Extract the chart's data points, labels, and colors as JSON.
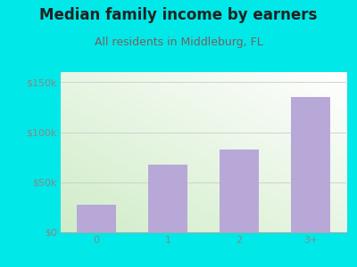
{
  "title": "Median family income by earners",
  "subtitle": "All residents in Middleburg, FL",
  "categories": [
    "0",
    "1",
    "2",
    "3+"
  ],
  "values": [
    28000,
    68000,
    83000,
    135000
  ],
  "bar_color": "#b8a8d8",
  "outer_bg": "#00e8e8",
  "plot_bg_topleft": "#d0ecc8",
  "plot_bg_bottomright": "#f5fff5",
  "title_color": "#222222",
  "subtitle_color": "#7a6060",
  "tick_label_color": "#888888",
  "ytick_labels": [
    "$0",
    "$50k",
    "$100k",
    "$150k"
  ],
  "ytick_values": [
    0,
    50000,
    100000,
    150000
  ],
  "ylim": [
    0,
    160000
  ],
  "grid_color": "#cccccc",
  "title_fontsize": 12,
  "subtitle_fontsize": 9,
  "tick_fontsize": 8
}
